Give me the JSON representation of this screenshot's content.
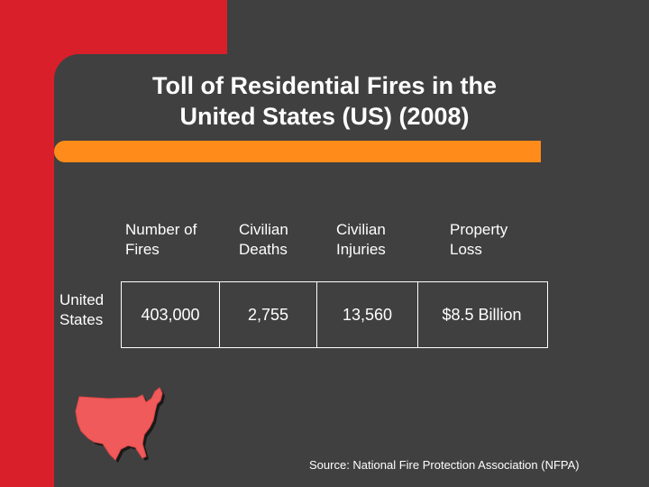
{
  "title_line1": "Toll of Residential Fires in the",
  "title_line2": "United States (US) (2008)",
  "table": {
    "columns": [
      {
        "line1": "Number of",
        "line2": "Fires"
      },
      {
        "line1": "Civilian",
        "line2": "Deaths"
      },
      {
        "line1": "Civilian",
        "line2": "Injuries"
      },
      {
        "line1": "Property",
        "line2": "Loss"
      }
    ],
    "row_label_line1": "United",
    "row_label_line2": "States",
    "values": [
      "403,000",
      "2,755",
      "13,560",
      "$8.5 Billion"
    ]
  },
  "source": "Source: National Fire Protection Association (NFPA)",
  "colors": {
    "red": "#d9202a",
    "dark": "#404040",
    "orange": "#ff8c1a",
    "map": "#f05a5a"
  },
  "icons": {
    "map": "us-map-icon"
  }
}
